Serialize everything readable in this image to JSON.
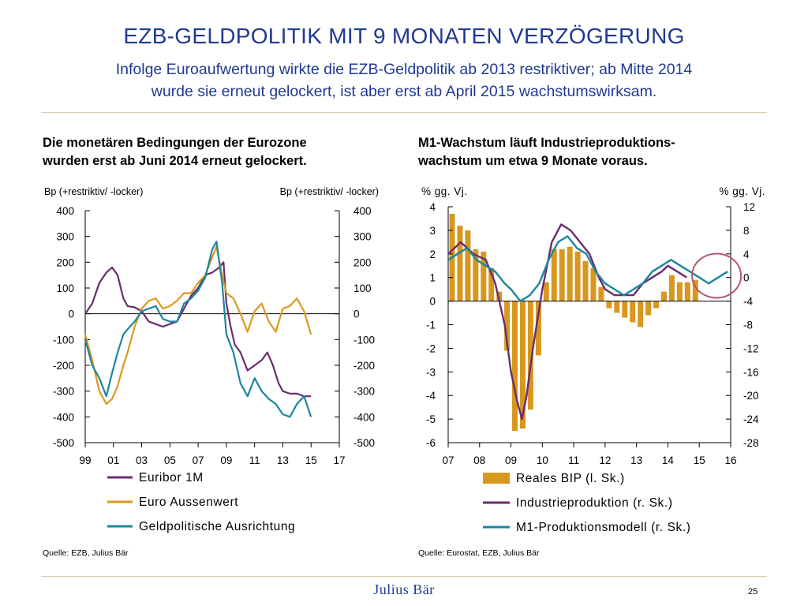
{
  "slide": {
    "title": "EZB-GELDPOLITIK MIT 9 MONATEN VERZÖGERUNG",
    "subtitle_line1": "Infolge Euroaufwertung wirkte die EZB-Geldpolitik ab 2013 restriktiver; ab Mitte 2014",
    "subtitle_line2": "wurde sie erneut gelockert, ist aber erst ab April 2015 wachstumswirksam.",
    "brand": "Julius Bär",
    "page_number": "25"
  },
  "left_panel": {
    "heading_line1": "Die monetären Bedingungen der Eurozone",
    "heading_line2": "wurden erst ab Juni 2014 erneut gelockert.",
    "source": "Quelle: EZB, Julius Bär"
  },
  "right_panel": {
    "heading_line1": "M1-Wachstum läuft Industrieproduktions-",
    "heading_line2": "wachstum um etwa 9 Monate voraus.",
    "source": "Quelle: Eurostat, EZB, Julius Bär"
  },
  "colors": {
    "purple": "#6b2c6f",
    "gold": "#d89a1f",
    "teal": "#1b86a0",
    "bar": "#d8971e",
    "circle": "#b5576a"
  },
  "chart_data": [
    {
      "type": "line",
      "ylabel_left": "Bp (+restriktiv/ -locker)",
      "ylabel_right": "Bp (+restriktiv/ -locker)",
      "ylim": [
        -500,
        400
      ],
      "yticks": [
        400,
        300,
        200,
        100,
        0,
        -100,
        -200,
        -300,
        -400,
        -500
      ],
      "xlim": [
        1999,
        2017
      ],
      "xticks": [
        1999,
        2001,
        2003,
        2005,
        2007,
        2009,
        2011,
        2013,
        2015,
        2017
      ],
      "xtick_labels": [
        "99",
        "01",
        "03",
        "05",
        "07",
        "09",
        "11",
        "13",
        "15",
        "17"
      ],
      "legend_position": "bottom",
      "series": [
        {
          "name": "Euribor 1M",
          "color": "#6b2c6f",
          "x": [
            1999.0,
            1999.5,
            2000.0,
            2000.5,
            2000.9,
            2001.3,
            2001.7,
            2002.0,
            2002.5,
            2003.0,
            2003.5,
            2004.0,
            2004.5,
            2005.0,
            2005.5,
            2006.0,
            2006.5,
            2007.0,
            2007.5,
            2008.0,
            2008.5,
            2008.8,
            2009.0,
            2009.3,
            2009.6,
            2010.0,
            2010.5,
            2011.0,
            2011.5,
            2011.9,
            2012.3,
            2012.7,
            2013.0,
            2013.5,
            2014.0,
            2014.5,
            2015.0
          ],
          "y": [
            0,
            40,
            120,
            160,
            180,
            150,
            60,
            30,
            25,
            10,
            -30,
            -40,
            -50,
            -40,
            -30,
            20,
            70,
            100,
            150,
            160,
            180,
            200,
            40,
            -50,
            -120,
            -150,
            -220,
            -200,
            -180,
            -150,
            -200,
            -270,
            -300,
            -310,
            -310,
            -320,
            -320
          ]
        },
        {
          "name": "Euro Aussenwert",
          "color": "#d89a1f",
          "x": [
            1999.0,
            1999.5,
            2000.0,
            2000.5,
            2000.9,
            2001.3,
            2001.7,
            2002.0,
            2002.5,
            2003.0,
            2003.5,
            2004.0,
            2004.5,
            2005.0,
            2005.5,
            2006.0,
            2006.5,
            2007.0,
            2007.5,
            2008.0,
            2008.3,
            2008.7,
            2009.0,
            2009.5,
            2010.0,
            2010.5,
            2011.0,
            2011.5,
            2012.0,
            2012.5,
            2013.0,
            2013.5,
            2014.0,
            2014.5,
            2015.0
          ],
          "y": [
            -80,
            -180,
            -300,
            -350,
            -330,
            -280,
            -200,
            -150,
            -50,
            20,
            50,
            60,
            20,
            30,
            50,
            80,
            80,
            120,
            150,
            220,
            260,
            150,
            80,
            60,
            0,
            -70,
            10,
            40,
            -30,
            -70,
            20,
            30,
            60,
            10,
            -80
          ]
        },
        {
          "name": "Geldpolitische Ausrichtung",
          "color": "#1b86a0",
          "x": [
            1999.0,
            1999.5,
            2000.0,
            2000.5,
            2000.9,
            2001.3,
            2001.7,
            2002.0,
            2002.5,
            2003.0,
            2003.5,
            2004.0,
            2004.5,
            2005.0,
            2005.5,
            2006.0,
            2006.5,
            2007.0,
            2007.5,
            2008.0,
            2008.3,
            2008.7,
            2009.0,
            2009.5,
            2010.0,
            2010.5,
            2011.0,
            2011.5,
            2012.0,
            2012.5,
            2013.0,
            2013.5,
            2014.0,
            2014.5,
            2015.0
          ],
          "y": [
            -100,
            -200,
            -250,
            -320,
            -230,
            -150,
            -80,
            -60,
            -30,
            10,
            20,
            30,
            -20,
            -30,
            -30,
            40,
            60,
            90,
            140,
            250,
            280,
            120,
            -80,
            -150,
            -270,
            -320,
            -250,
            -300,
            -330,
            -350,
            -390,
            -400,
            -350,
            -320,
            -400
          ]
        }
      ]
    },
    {
      "type": "bar+line",
      "ylabel_left": "% gg. Vj.",
      "ylabel_right": "% gg. Vj.",
      "ylim_left": [
        -6,
        4
      ],
      "yticks_left": [
        4,
        3,
        2,
        1,
        0,
        -1,
        -2,
        -3,
        -4,
        -5,
        -6
      ],
      "ylim_right": [
        -28,
        12
      ],
      "yticks_right": [
        12,
        8,
        4,
        0,
        -4,
        -8,
        -12,
        -16,
        -20,
        -24,
        -28
      ],
      "xlim": [
        2007,
        2016
      ],
      "xticks": [
        2007,
        2008,
        2009,
        2010,
        2011,
        2012,
        2013,
        2014,
        2015,
        2016
      ],
      "xtick_labels": [
        "07",
        "08",
        "09",
        "10",
        "11",
        "12",
        "13",
        "14",
        "15",
        "16"
      ],
      "legend_position": "bottom",
      "annotation": "circle around latest M1 model values (2015)",
      "bars": {
        "name": "Reales BIP (l. Sk.)",
        "axis": "left",
        "x": [
          2007.125,
          2007.375,
          2007.625,
          2007.875,
          2008.125,
          2008.375,
          2008.625,
          2008.875,
          2009.125,
          2009.375,
          2009.625,
          2009.875,
          2010.125,
          2010.375,
          2010.625,
          2010.875,
          2011.125,
          2011.375,
          2011.625,
          2011.875,
          2012.125,
          2012.375,
          2012.625,
          2012.875,
          2013.125,
          2013.375,
          2013.625,
          2013.875,
          2014.125,
          2014.375,
          2014.625,
          2014.875
        ],
        "values": [
          3.7,
          3.2,
          3.0,
          2.2,
          2.1,
          1.4,
          0.4,
          -2.1,
          -5.5,
          -5.4,
          -4.6,
          -2.3,
          0.8,
          2.2,
          2.2,
          2.3,
          2.1,
          1.7,
          1.4,
          0.6,
          -0.3,
          -0.5,
          -0.7,
          -0.9,
          -1.1,
          -0.6,
          -0.3,
          0.4,
          1.1,
          0.8,
          0.8,
          0.9
        ]
      },
      "series": [
        {
          "name": "Industrieproduktion (r. Sk.)",
          "axis": "right",
          "color": "#6b2c6f",
          "x": [
            2007.0,
            2007.4,
            2007.8,
            2008.2,
            2008.5,
            2008.8,
            2009.0,
            2009.2,
            2009.35,
            2009.5,
            2009.7,
            2010.0,
            2010.3,
            2010.6,
            2010.9,
            2011.2,
            2011.5,
            2011.8,
            2012.0,
            2012.3,
            2012.6,
            2012.9,
            2013.2,
            2013.5,
            2013.8,
            2014.0,
            2014.3,
            2014.6
          ],
          "y": [
            4,
            6,
            4,
            3,
            -1,
            -8,
            -16,
            -21,
            -24,
            -20,
            -12,
            -2,
            6,
            9,
            8,
            6,
            4,
            0,
            -2,
            -3,
            -3,
            -3,
            -1,
            0,
            1,
            2,
            1,
            0
          ]
        },
        {
          "name": "M1-Produktionsmodell (r. Sk.)",
          "axis": "right",
          "color": "#1b86a0",
          "x": [
            2007.0,
            2007.3,
            2007.6,
            2007.9,
            2008.2,
            2008.5,
            2008.8,
            2009.0,
            2009.3,
            2009.6,
            2009.9,
            2010.2,
            2010.5,
            2010.8,
            2011.1,
            2011.4,
            2011.7,
            2012.0,
            2012.3,
            2012.6,
            2012.9,
            2013.2,
            2013.5,
            2013.8,
            2014.1,
            2014.4,
            2014.7,
            2015.0,
            2015.3,
            2015.6,
            2015.9
          ],
          "y": [
            3,
            4,
            5,
            3,
            2,
            1,
            -1,
            -2,
            -4,
            -3,
            -1,
            3,
            6,
            7,
            5,
            4,
            1,
            -1,
            -2,
            -3,
            -2,
            -1,
            1,
            2,
            3,
            2,
            1,
            0,
            -1,
            0,
            1
          ]
        }
      ]
    }
  ],
  "legend_left": [
    {
      "label": "Euribor 1M",
      "color": "#6b2c6f",
      "kind": "line"
    },
    {
      "label": "Euro Aussenwert",
      "color": "#d89a1f",
      "kind": "line"
    },
    {
      "label": "Geldpolitische Ausrichtung",
      "color": "#1b86a0",
      "kind": "line"
    }
  ],
  "legend_right": [
    {
      "label": "Reales BIP (l. Sk.)",
      "color": "#d8971e",
      "kind": "bar"
    },
    {
      "label": "Industrieproduktion (r. Sk.)",
      "color": "#6b2c6f",
      "kind": "line"
    },
    {
      "label": "M1-Produktionsmodell (r. Sk.)",
      "color": "#1b86a0",
      "kind": "line"
    }
  ]
}
